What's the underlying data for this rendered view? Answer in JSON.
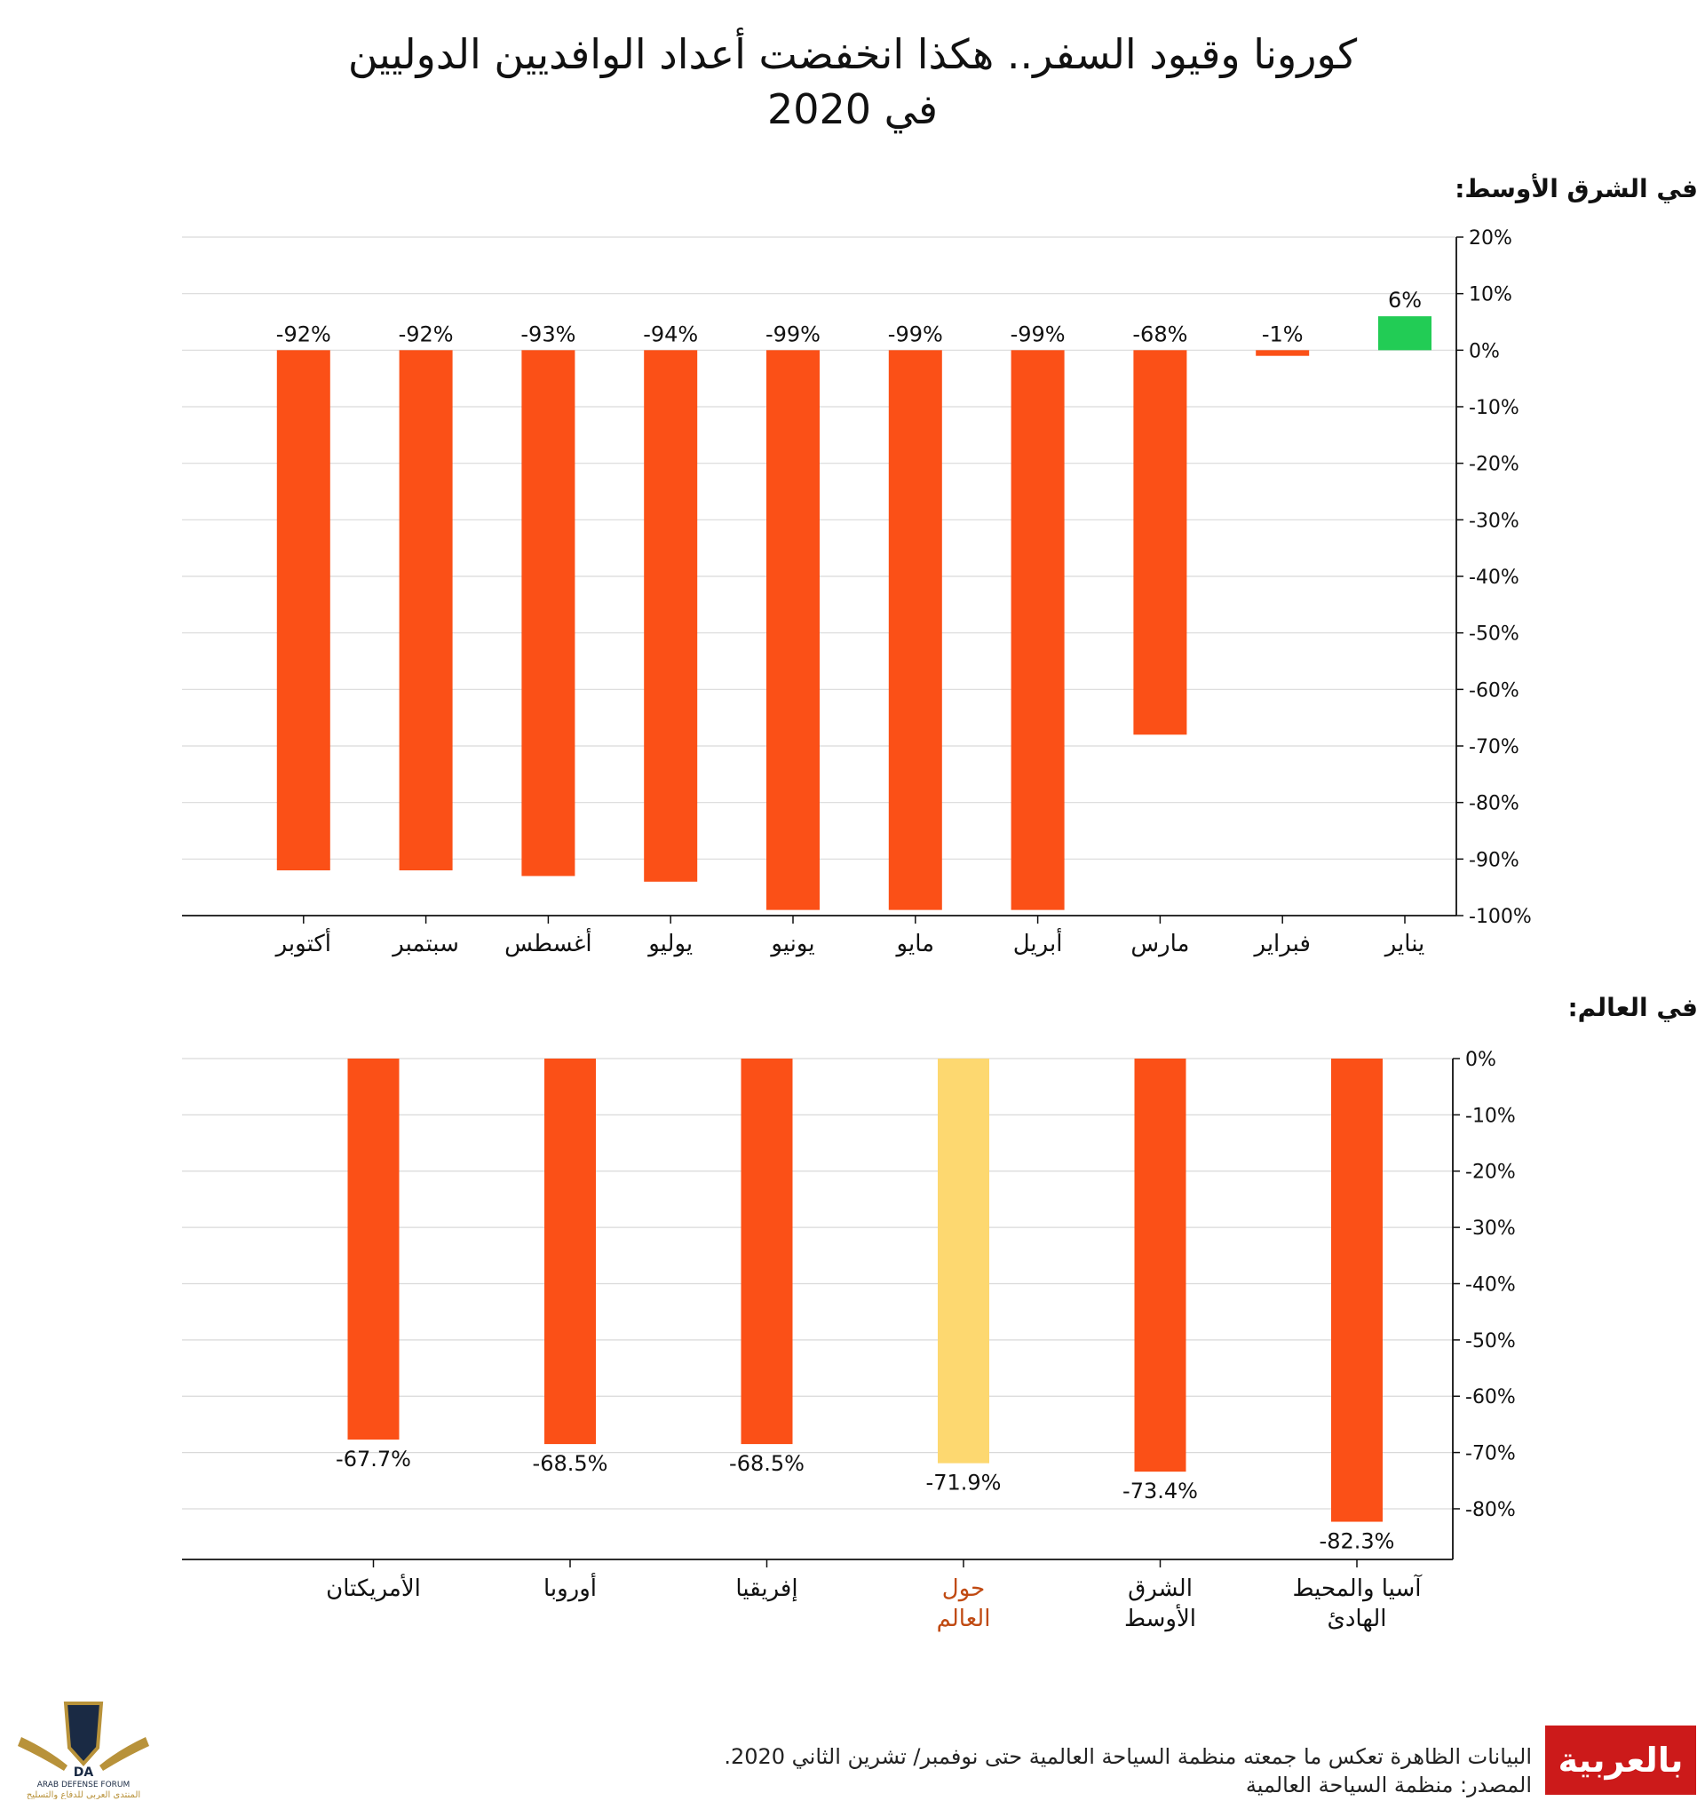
{
  "title": [
    "كورونا وقيود السفر.. هكذا انخفضت أعداد الوافديين الدوليين",
    "في 2020"
  ],
  "colors": {
    "negative": "#fb5017",
    "positive": "#22cc55",
    "highlight": "#fdd870",
    "highlight_text": "#c04a12",
    "grid": "#d9d9d9",
    "axis": "#111111"
  },
  "chart_data": [
    {
      "type": "bar",
      "section_label": "في الشرق الأوسط:",
      "categories": [
        "يناير",
        "فبراير",
        "مارس",
        "أبريل",
        "مايو",
        "يونيو",
        "يوليو",
        "أغسطس",
        "سبتمبر",
        "أكتوبر"
      ],
      "values": [
        6,
        -1,
        -68,
        -99,
        -99,
        -99,
        -94,
        -93,
        -92,
        -92
      ],
      "value_labels": [
        "6%",
        "-1%",
        "-68%",
        "-99%",
        "-99%",
        "-99%",
        "-94%",
        "-93%",
        "-92%",
        "-92%"
      ],
      "ylim": [
        -100,
        20
      ],
      "yticks": [
        "20%",
        "10%",
        "0%",
        "-10%",
        "-20%",
        "-30%",
        "-40%",
        "-50%",
        "-60%",
        "-70%",
        "-80%",
        "-90%",
        "-100%"
      ],
      "category_order": "right-to-left",
      "y_axis": "right",
      "grid": true
    },
    {
      "type": "bar",
      "section_label": "في العالم:",
      "categories": [
        [
          "آسيا والمحيط",
          "الهادئ"
        ],
        [
          "الشرق",
          "الأوسط"
        ],
        [
          "حول",
          "العالم"
        ],
        [
          "إفريقيا"
        ],
        [
          "أوروبا"
        ],
        [
          "الأمريكتان"
        ]
      ],
      "values": [
        -82.3,
        -73.4,
        -71.9,
        -68.5,
        -68.5,
        -67.7
      ],
      "value_labels": [
        "-82.3%",
        "-73.4%",
        "-71.9%",
        "-68.5%",
        "-68.5%",
        "-67.7%"
      ],
      "highlight_index": 2,
      "ylim": [
        -89,
        0
      ],
      "yticks": [
        "0%",
        "-10%",
        "-20%",
        "-30%",
        "-40%",
        "-50%",
        "-60%",
        "-70%",
        "-80%"
      ],
      "category_order": "right-to-left",
      "y_axis": "right",
      "grid": true
    }
  ],
  "footer": {
    "note": "البيانات الظاهرة تعكس ما جمعته منظمة السياحة العالمية حتى نوفمبر/ تشرين الثاني 2020.",
    "source": "المصدر: منظمة السياحة العالمية"
  },
  "logos": {
    "cnn": "بالعربية",
    "forum": "ARAB DEFENSE FORUM",
    "forum_ar": "المنتدى العربي للدفاع والتسليح",
    "forum_mark": "DA"
  }
}
